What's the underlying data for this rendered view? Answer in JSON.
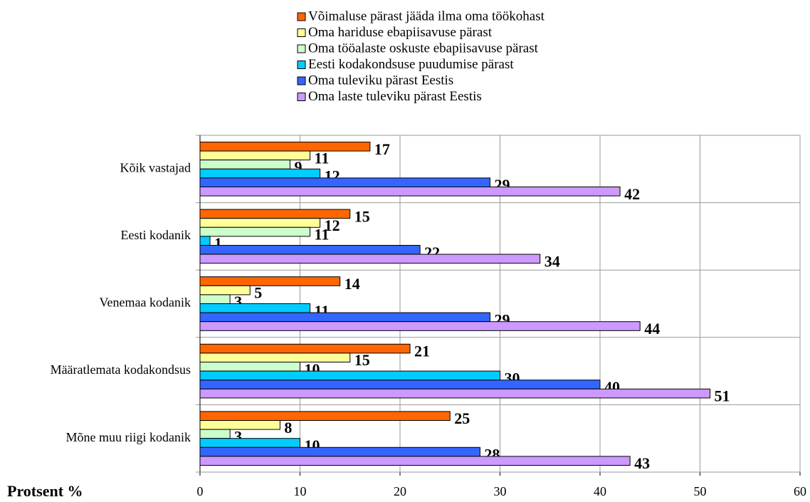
{
  "chart_data": {
    "type": "barh",
    "xlabel": "Protsent %",
    "categories": [
      "Kõik vastajad",
      "Eesti kodanik",
      "Venemaa kodanik",
      "Määratlemata kodakondsus",
      "Mõne muu riigi kodanik"
    ],
    "series": [
      {
        "name": "Võimaluse pärast jääda ilma oma töökohast",
        "color": "#ff6600",
        "values": [
          17,
          15,
          14,
          21,
          25
        ]
      },
      {
        "name": "Oma hariduse ebapiisavuse pärast",
        "color": "#ffff99",
        "values": [
          11,
          12,
          5,
          15,
          8
        ]
      },
      {
        "name": "Oma tööalaste oskuste ebapiisavuse pärast",
        "color": "#ccffcc",
        "values": [
          9,
          11,
          3,
          10,
          3
        ]
      },
      {
        "name": "Eesti kodakondsuse puudumise pärast",
        "color": "#00ccff",
        "values": [
          12,
          1,
          11,
          30,
          10
        ]
      },
      {
        "name": "Oma tuleviku pärast Eestis",
        "color": "#3366ff",
        "values": [
          29,
          22,
          29,
          40,
          28
        ]
      },
      {
        "name": "Oma laste tuleviku pärast Eestis",
        "color": "#cc99ff",
        "values": [
          42,
          34,
          44,
          51,
          43
        ]
      }
    ],
    "xlim": [
      0,
      60
    ],
    "xticks": [
      0,
      10,
      20,
      30,
      40,
      50,
      60
    ],
    "grid": true,
    "legend": "top"
  }
}
